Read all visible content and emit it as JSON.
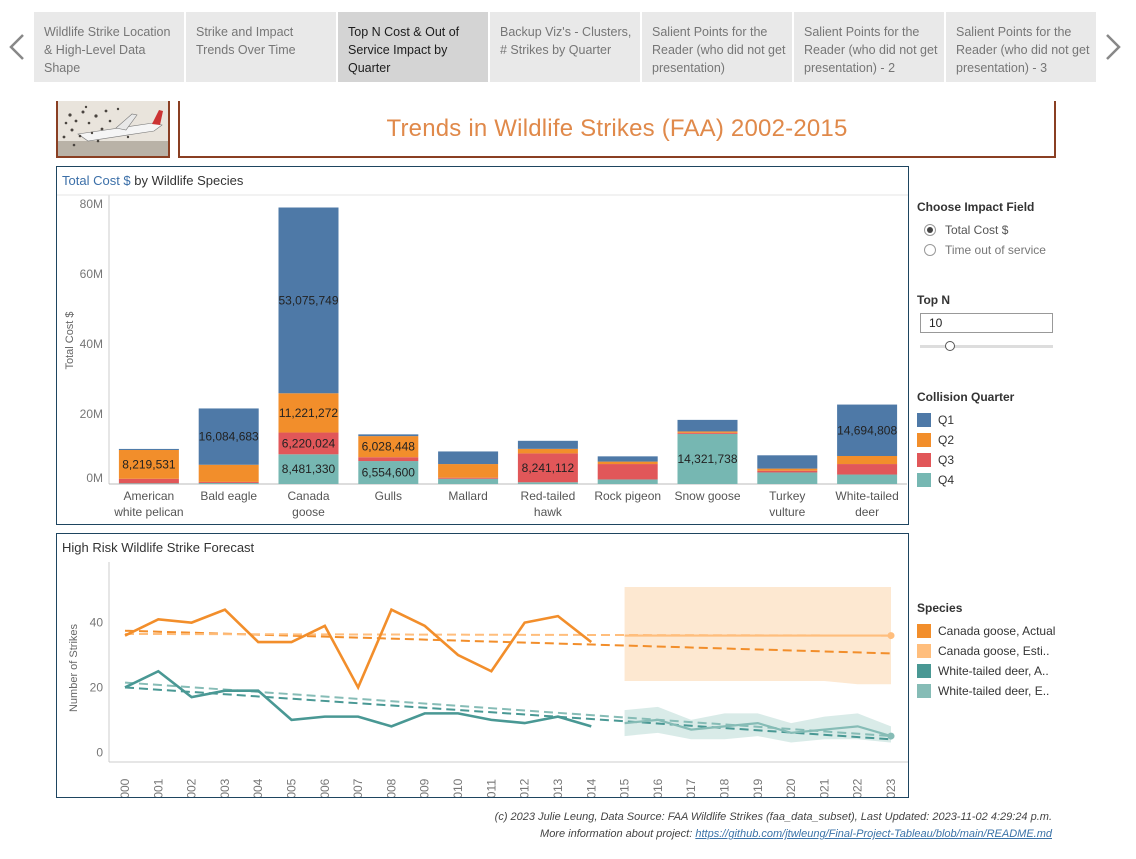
{
  "nav": {
    "tabs": [
      {
        "label": "Wildlife Strike Location & High-Level Data Shape",
        "active": false
      },
      {
        "label": "Strike and Impact Trends Over Time",
        "active": false
      },
      {
        "label": "Top N Cost & Out of Service Impact by Quarter",
        "active": true
      },
      {
        "label": "Backup Viz's - Clusters, # Strikes by Quarter",
        "active": false
      },
      {
        "label": "Salient Points for the Reader (who did not get presentation)",
        "active": false
      },
      {
        "label": "Salient Points for the Reader (who did not get presentation) - 2",
        "active": false
      },
      {
        "label": "Salient Points for the Reader (who did not get presentation) - 3",
        "active": false
      }
    ]
  },
  "header": {
    "title": "Trends in Wildlife Strikes (FAA) 2002-2015"
  },
  "colors": {
    "q1": "#4e79a7",
    "q2": "#f28e2b",
    "q3": "#e15759",
    "q4": "#76b7b2",
    "goose_actual": "#f28e2b",
    "goose_est": "#ffbe7d",
    "deer_actual": "#499894",
    "deer_est": "#86bcb6",
    "title": "#e0894a",
    "frame": "#8a3f23"
  },
  "controls": {
    "impact_field": {
      "heading": "Choose Impact Field",
      "options": [
        {
          "label": "Total Cost $",
          "selected": true
        },
        {
          "label": "Time out of service",
          "selected": false
        }
      ]
    },
    "top_n": {
      "heading": "Top N",
      "value": "10",
      "slider_fraction": 0.2
    },
    "quarter_legend": {
      "heading": "Collision Quarter",
      "items": [
        "Q1",
        "Q2",
        "Q3",
        "Q4"
      ]
    },
    "species_legend": {
      "heading": "Species",
      "items": [
        "Canada goose, Actual",
        "Canada goose, Esti..",
        "White-tailed deer, A..",
        "White-tailed deer, E.."
      ]
    }
  },
  "chart_data": [
    {
      "type": "bar",
      "stacked": true,
      "title_highlight": "Total Cost $",
      "title_rest": " by Wildlife Species",
      "ylabel": "Total Cost $",
      "ylim": [
        0,
        82000000
      ],
      "yticks": [
        0,
        20000000,
        40000000,
        60000000,
        80000000
      ],
      "ytick_labels": [
        "0M",
        "20M",
        "40M",
        "60M",
        "80M"
      ],
      "categories": [
        [
          "American",
          "white pelican"
        ],
        [
          "Bald eagle"
        ],
        [
          "Canada",
          "goose"
        ],
        [
          "Gulls"
        ],
        [
          "Mallard"
        ],
        [
          "Red-tailed",
          "hawk"
        ],
        [
          "Rock pigeon"
        ],
        [
          "Snow goose"
        ],
        [
          "Turkey",
          "vulture"
        ],
        [
          "White-tailed",
          "deer"
        ]
      ],
      "series": [
        {
          "name": "Q4",
          "values": [
            200000,
            300000,
            8481330,
            6554600,
            1500000,
            500000,
            1300000,
            14321738,
            3300000,
            2700000
          ]
        },
        {
          "name": "Q3",
          "values": [
            1300000,
            300000,
            6220024,
            1100000,
            300000,
            8241112,
            4400000,
            300000,
            500000,
            3000000
          ]
        },
        {
          "name": "Q2",
          "values": [
            8219531,
            4900000,
            11221272,
            6028448,
            3900000,
            1300000,
            700000,
            400000,
            600000,
            2300000
          ]
        },
        {
          "name": "Q1",
          "values": [
            300000,
            16084683,
            53075749,
            500000,
            3600000,
            2300000,
            1500000,
            3300000,
            3800000,
            14694808
          ]
        }
      ],
      "data_labels": [
        {
          "category": 0,
          "series": "Q2",
          "text": "8,219,531"
        },
        {
          "category": 1,
          "series": "Q1",
          "text": "16,084,683"
        },
        {
          "category": 2,
          "series": "Q1",
          "text": "53,075,749"
        },
        {
          "category": 2,
          "series": "Q2",
          "text": "11,221,272"
        },
        {
          "category": 2,
          "series": "Q3",
          "text": "6,220,024"
        },
        {
          "category": 2,
          "series": "Q4",
          "text": "8,481,330"
        },
        {
          "category": 3,
          "series": "Q2",
          "text": "6,028,448"
        },
        {
          "category": 3,
          "series": "Q4",
          "text": "6,554,600"
        },
        {
          "category": 5,
          "series": "Q3",
          "text": "8,241,112"
        },
        {
          "category": 7,
          "series": "Q4",
          "text": "14,321,738"
        },
        {
          "category": 9,
          "series": "Q1",
          "text": "14,694,808"
        }
      ]
    },
    {
      "type": "line",
      "title": "High Risk Wildlife Strike Forecast",
      "ylabel": "Number of Strikes",
      "ylim": [
        -3,
        55
      ],
      "yticks": [
        0,
        20,
        40
      ],
      "x": [
        2000,
        2001,
        2002,
        2003,
        2004,
        2005,
        2006,
        2007,
        2008,
        2009,
        2010,
        2011,
        2012,
        2013,
        2014,
        2015,
        2016,
        2017,
        2018,
        2019,
        2020,
        2021,
        2022,
        2023
      ],
      "forecast_band": {
        "from": 2015,
        "to": 2023
      },
      "series": [
        {
          "name": "Canada goose, Actual",
          "x": [
            2000,
            2001,
            2002,
            2003,
            2004,
            2005,
            2006,
            2007,
            2008,
            2009,
            2010,
            2011,
            2012,
            2013,
            2014
          ],
          "values": [
            36,
            41,
            40,
            44,
            34,
            34,
            39,
            20,
            44,
            39,
            30,
            25,
            40,
            42,
            34
          ],
          "trend": [
            [
              2000,
              37.5
            ],
            [
              2023,
              30.5
            ]
          ]
        },
        {
          "name": "Canada goose, Esti..",
          "x": [
            2015,
            2016,
            2017,
            2018,
            2019,
            2020,
            2021,
            2022,
            2023
          ],
          "values": [
            36,
            36,
            36,
            36,
            36,
            36,
            36,
            36,
            36
          ],
          "lower": [
            22,
            22,
            22,
            22,
            22,
            22,
            22,
            21,
            21
          ],
          "upper": [
            51,
            51,
            51,
            51,
            51,
            51,
            51,
            51,
            51
          ],
          "trend": [
            [
              2000,
              36.5
            ],
            [
              2023,
              36
            ]
          ]
        },
        {
          "name": "White-tailed deer, A..",
          "x": [
            2000,
            2001,
            2002,
            2003,
            2004,
            2005,
            2006,
            2007,
            2008,
            2009,
            2010,
            2011,
            2012,
            2013,
            2014
          ],
          "values": [
            20,
            25,
            17,
            19,
            19,
            10,
            11,
            11,
            8,
            12,
            12,
            10,
            9,
            11,
            8
          ],
          "trend": [
            [
              2000,
              20
            ],
            [
              2023,
              4
            ]
          ]
        },
        {
          "name": "White-tailed deer, E..",
          "x": [
            2015,
            2016,
            2017,
            2018,
            2019,
            2020,
            2021,
            2022,
            2023
          ],
          "values": [
            9,
            10,
            7,
            8,
            9,
            6,
            7,
            8,
            5
          ],
          "lower": [
            5,
            6,
            4,
            4,
            5,
            3,
            4,
            4,
            3
          ],
          "upper": [
            13,
            14,
            10,
            12,
            12,
            9,
            11,
            12,
            8
          ],
          "trend": [
            [
              2000,
              21.5
            ],
            [
              2023,
              5
            ]
          ]
        }
      ]
    }
  ],
  "footer": {
    "line1": "(c) 2023 Julie Leung, Data Source: FAA Wildlife Strikes (faa_data_subset), Last Updated: 2023-11-02 4:29:24 p.m.",
    "line2_prefix": "More information about project: ",
    "link": "https://github.com/jtwleung/Final-Project-Tableau/blob/main/README.md"
  }
}
